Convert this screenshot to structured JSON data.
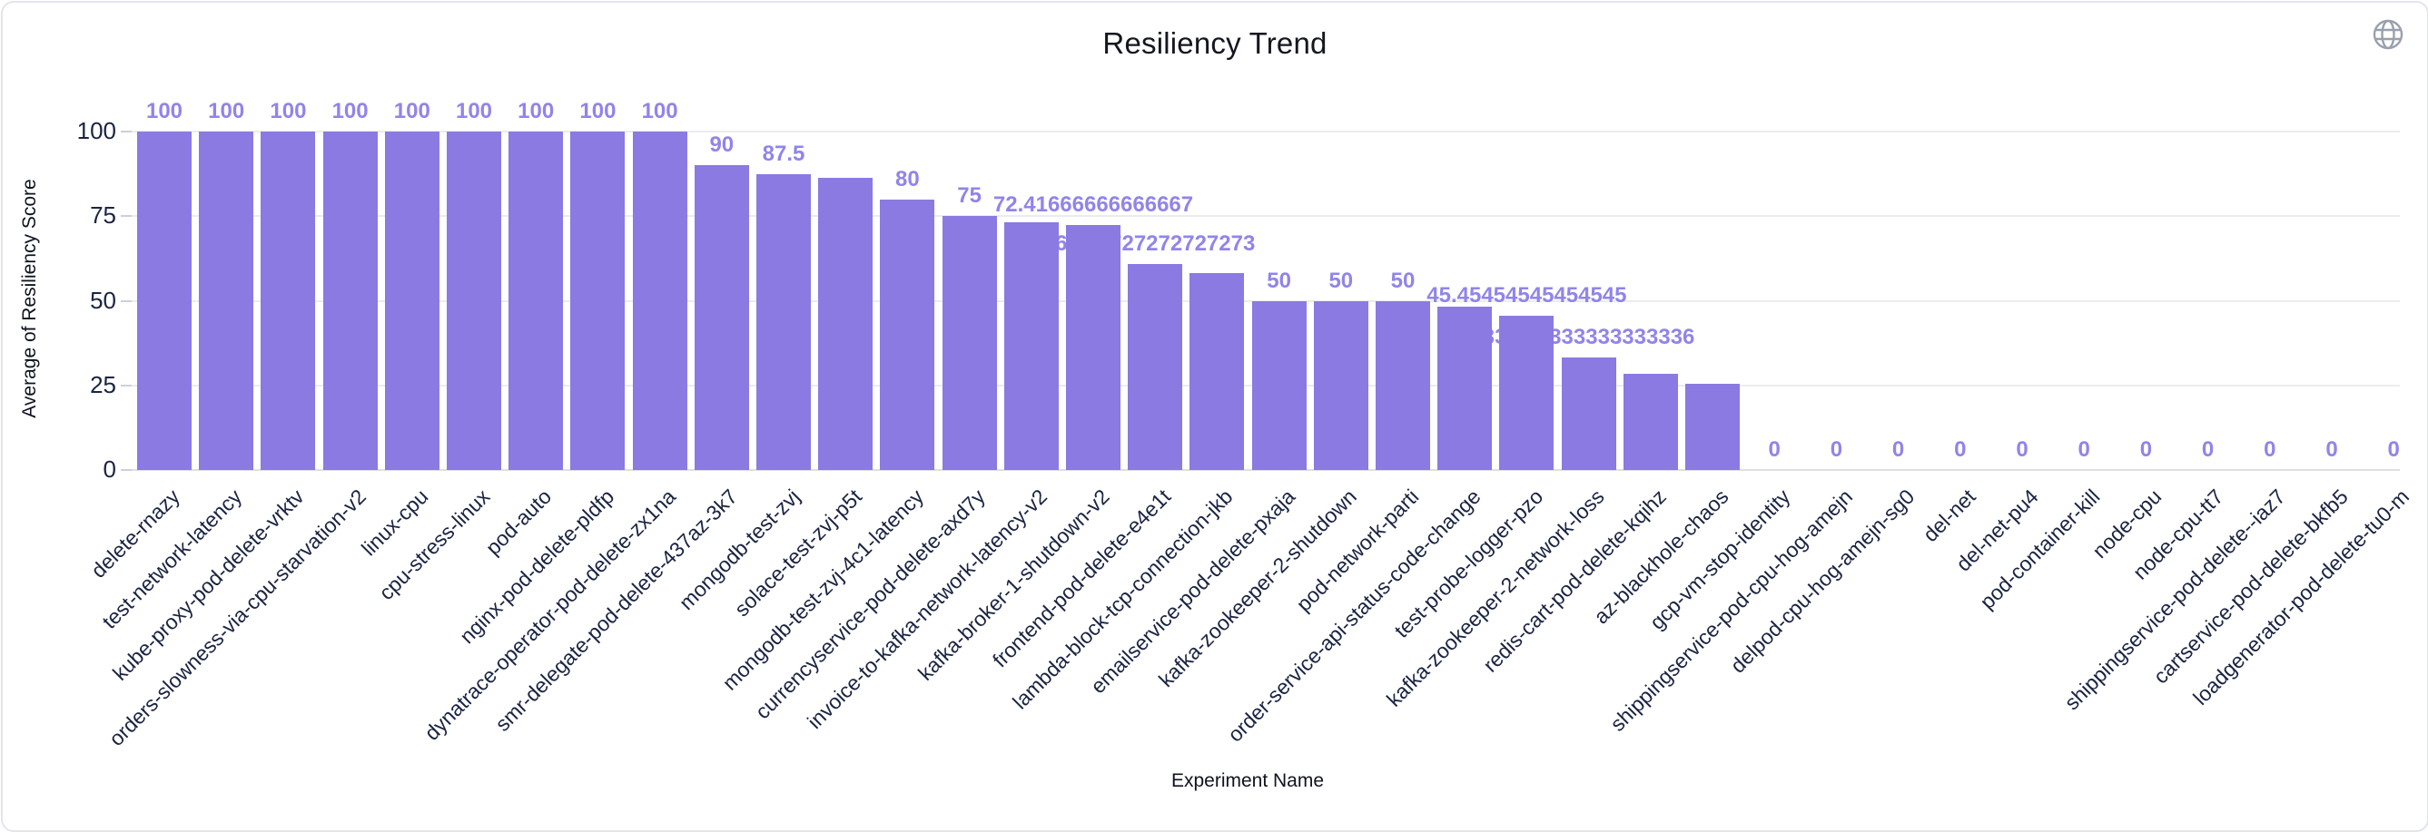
{
  "header": {
    "title": "Resiliency Trend",
    "globe_icon": "globe-icon"
  },
  "chart_data": {
    "type": "bar",
    "title": "Resiliency Trend",
    "xlabel": "Experiment Name",
    "ylabel": "Average of Resiliency Score",
    "ylim": [
      0,
      100
    ],
    "yticks": [
      0,
      25,
      50,
      75,
      100
    ],
    "grid": true,
    "legend": "none",
    "bar_color": "#8a7ae2",
    "value_label_color": "#9184ea",
    "axis_text_color": "#1a2442",
    "categories": [
      "delete-rnazy",
      "test-network-latency",
      "kube-proxy-pod-delete-vrktv",
      "orders-slowness-via-cpu-starvation-v2",
      "linux-cpu",
      "cpu-stress-linux",
      "pod-auto",
      "nginx-pod-delete-pldfp",
      "dynatrace-operator-pod-delete-zx1na",
      "smr-delegate-pod-delete-437az-3k7",
      "mongodb-test-zvj",
      "solace-test-zvj-p5t",
      "mongodb-test-zvj-4c1-latency",
      "currencyservice-pod-delete-axd7y",
      "invoice-to-kafka-network-latency-v2",
      "kafka-broker-1-shutdown-v2",
      "frontend-pod-delete-e4e1t",
      "lambda-block-tcp-connection-jkb",
      "emailservice-pod-delete-pxaja",
      "kafka-zookeeper-2-shutdown",
      "pod-network-parti",
      "order-service-api-status-code-change",
      "test-probe-logger-pzo",
      "kafka-zookeeper-2-network-loss",
      "redis-cart-pod-delete-kqihz",
      "az-blackhole-chaos",
      "gcp-vm-stop-identity",
      "shippingservice-pod-cpu-hog-amejn",
      "delpod-cpu-hog-amejn-sg0",
      "del-net",
      "del-net-pu4",
      "pod-container-kill",
      "node-cpu",
      "node-cpu-tt7",
      "shippingservice-pod-delete--iaz7",
      "cartservice-pod-delete-bkfb5",
      "loadgenerator-pod-delete-tu0-m"
    ],
    "values": [
      100,
      100,
      100,
      100,
      100,
      100,
      100,
      100,
      100,
      90,
      87.5,
      86.2,
      80,
      75,
      73.3,
      72.41666666666667,
      60.72727272727273,
      58.3,
      50,
      50,
      50,
      48.3,
      45.45454545454545,
      33.333333333333336,
      28.3,
      25.5,
      0,
      0,
      0,
      0,
      0,
      0,
      0,
      0,
      0,
      0,
      0
    ],
    "bar_labels": [
      "100",
      "100",
      "100",
      "100",
      "100",
      "100",
      "100",
      "100",
      "100",
      "90",
      "87.5",
      "",
      "80",
      "75",
      "",
      "72.41666666666667",
      "60.72727272727273",
      "",
      "50",
      "50",
      "50",
      "",
      "45.45454545454545",
      "33.333333333333336",
      "",
      "",
      "0",
      "0",
      "0",
      "0",
      "0",
      "0",
      "0",
      "0",
      "0",
      "0",
      "0"
    ]
  }
}
